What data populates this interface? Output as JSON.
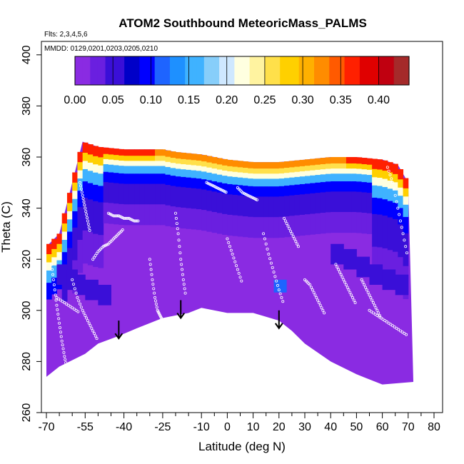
{
  "chart_data": {
    "type": "heatmap",
    "title": "ATOM2 Southbound MeteoricMass_PALMS",
    "flights_note": "Flts: 2,3,4,5,6",
    "dates_note": "MMDD: 0129,0201,0203,0205,0210",
    "xlabel": "Latitude (deg N)",
    "ylabel": "Theta (C)",
    "xlim": [
      -70,
      85
    ],
    "ylim": [
      260,
      405
    ],
    "x_ticks": [
      -70,
      -55,
      -40,
      -25,
      -10,
      0,
      10,
      20,
      30,
      40,
      50,
      60,
      70,
      80
    ],
    "x_minor_ticks": [
      -65,
      -60,
      -50,
      -45,
      -35,
      -30,
      -20,
      -15,
      -5,
      5,
      15,
      25,
      35,
      45,
      55,
      65,
      75,
      85
    ],
    "y_ticks": [
      260,
      280,
      300,
      320,
      340,
      360,
      380,
      400
    ],
    "colorbar": {
      "ticks": [
        0.0,
        0.05,
        0.1,
        0.15,
        0.2,
        0.25,
        0.3,
        0.35,
        0.4
      ],
      "tick_labels": [
        "0.00",
        "0.05",
        "0.10",
        "0.15",
        "0.20",
        "0.25",
        "0.30",
        "0.35",
        "0.40"
      ],
      "range": [
        0.0,
        0.44
      ],
      "colors": [
        "#8a2be2",
        "#6a1fe0",
        "#3a0fd8",
        "#0000c8",
        "#0000ff",
        "#1e64ff",
        "#1e90ff",
        "#3fb2ff",
        "#87cefa",
        "#cfe8ff",
        "#ffffe0",
        "#fff3a0",
        "#ffe04a",
        "#ffd000",
        "#ffb000",
        "#ff8c00",
        "#ff5a00",
        "#ff2000",
        "#e00000",
        "#c00010",
        "#a52a2a"
      ]
    },
    "field_summary": {
      "background_value": 0.0,
      "tropopause_band_values": [
        0.05,
        0.1,
        0.15
      ],
      "upper_band_values": [
        0.2,
        0.25,
        0.3,
        0.35
      ]
    },
    "surface_profile": {
      "lat": [
        -70,
        -65,
        -55,
        -50,
        -42,
        -35,
        -25,
        -15,
        -10,
        0,
        5,
        10,
        20,
        25,
        30,
        40,
        50,
        60,
        72
      ],
      "theta": [
        274,
        278,
        283,
        287,
        290,
        293,
        297,
        299,
        301,
        299,
        299,
        299,
        296,
        292,
        287,
        280,
        275,
        271,
        272
      ]
    },
    "top_profile": {
      "lat": [
        -70,
        -65,
        -60,
        -56,
        -50,
        -40,
        -25,
        -20,
        -10,
        0,
        10,
        20,
        30,
        40,
        50,
        60,
        66,
        70
      ],
      "theta": [
        325,
        330,
        350,
        366,
        364,
        363,
        363,
        362,
        361,
        359,
        358,
        358,
        359,
        360,
        360,
        359,
        357,
        350
      ]
    },
    "dive_arrows": [
      {
        "lat": -42,
        "theta_top": 296,
        "theta_bottom": 289
      },
      {
        "lat": -18,
        "theta_top": 304,
        "theta_bottom": 297
      },
      {
        "lat": 20,
        "theta_top": 300,
        "theta_bottom": 293
      }
    ],
    "flight_tracks": [
      {
        "lat": [
          -68,
          -67,
          -66,
          -65,
          -64,
          -63,
          -62
        ],
        "theta": [
          318,
          310,
          302,
          295,
          288,
          282,
          277
        ]
      },
      {
        "lat": [
          -60,
          -58,
          -56,
          -54,
          -52,
          -50
        ],
        "theta": [
          312,
          305,
          300,
          296,
          292,
          288
        ]
      },
      {
        "lat": [
          -57,
          -56,
          -55,
          -54,
          -53
        ],
        "theta": [
          350,
          345,
          340,
          335,
          330
        ]
      },
      {
        "lat": [
          -52,
          -50,
          -48,
          -46,
          -44,
          -42,
          -40
        ],
        "theta": [
          320,
          323,
          325,
          326,
          328,
          330,
          332
        ]
      },
      {
        "lat": [
          -46,
          -44,
          -42,
          -40,
          -38,
          -36,
          -34
        ],
        "theta": [
          338,
          337,
          337,
          336,
          336,
          335,
          335
        ]
      },
      {
        "lat": [
          -30,
          -29,
          -28,
          -27,
          -26,
          -25
        ],
        "theta": [
          320,
          312,
          305,
          300,
          298,
          296
        ]
      },
      {
        "lat": [
          -20,
          -19,
          -18,
          -17,
          -16
        ],
        "theta": [
          338,
          330,
          320,
          312,
          305
        ]
      },
      {
        "lat": [
          -8,
          -6,
          -4,
          -2,
          0
        ],
        "theta": [
          350,
          349,
          348,
          347,
          346
        ]
      },
      {
        "lat": [
          0,
          2,
          4,
          6
        ],
        "theta": [
          328,
          322,
          316,
          310
        ]
      },
      {
        "lat": [
          4,
          6,
          8,
          10,
          12
        ],
        "theta": [
          348,
          346,
          345,
          344,
          343
        ]
      },
      {
        "lat": [
          14,
          16,
          18,
          20,
          22
        ],
        "theta": [
          330,
          322,
          315,
          308,
          302
        ]
      },
      {
        "lat": [
          22,
          24,
          26,
          28
        ],
        "theta": [
          336,
          332,
          328,
          324
        ]
      },
      {
        "lat": [
          30,
          32,
          34,
          36,
          38
        ],
        "theta": [
          312,
          310,
          306,
          302,
          298
        ]
      },
      {
        "lat": [
          42,
          44,
          46,
          48,
          50
        ],
        "theta": [
          318,
          314,
          310,
          306,
          302
        ]
      },
      {
        "lat": [
          52,
          54,
          56,
          58,
          60
        ],
        "theta": [
          312,
          308,
          304,
          300,
          296
        ]
      },
      {
        "lat": [
          62,
          64,
          66,
          68,
          70
        ],
        "theta": [
          356,
          350,
          340,
          330,
          320
        ]
      },
      {
        "lat": [
          55,
          58,
          61,
          64,
          67,
          70
        ],
        "theta": [
          300,
          298,
          296,
          294,
          292,
          290
        ]
      },
      {
        "lat": [
          -66,
          -63,
          -60,
          -57
        ],
        "theta": [
          305,
          303,
          301,
          299
        ]
      }
    ]
  }
}
